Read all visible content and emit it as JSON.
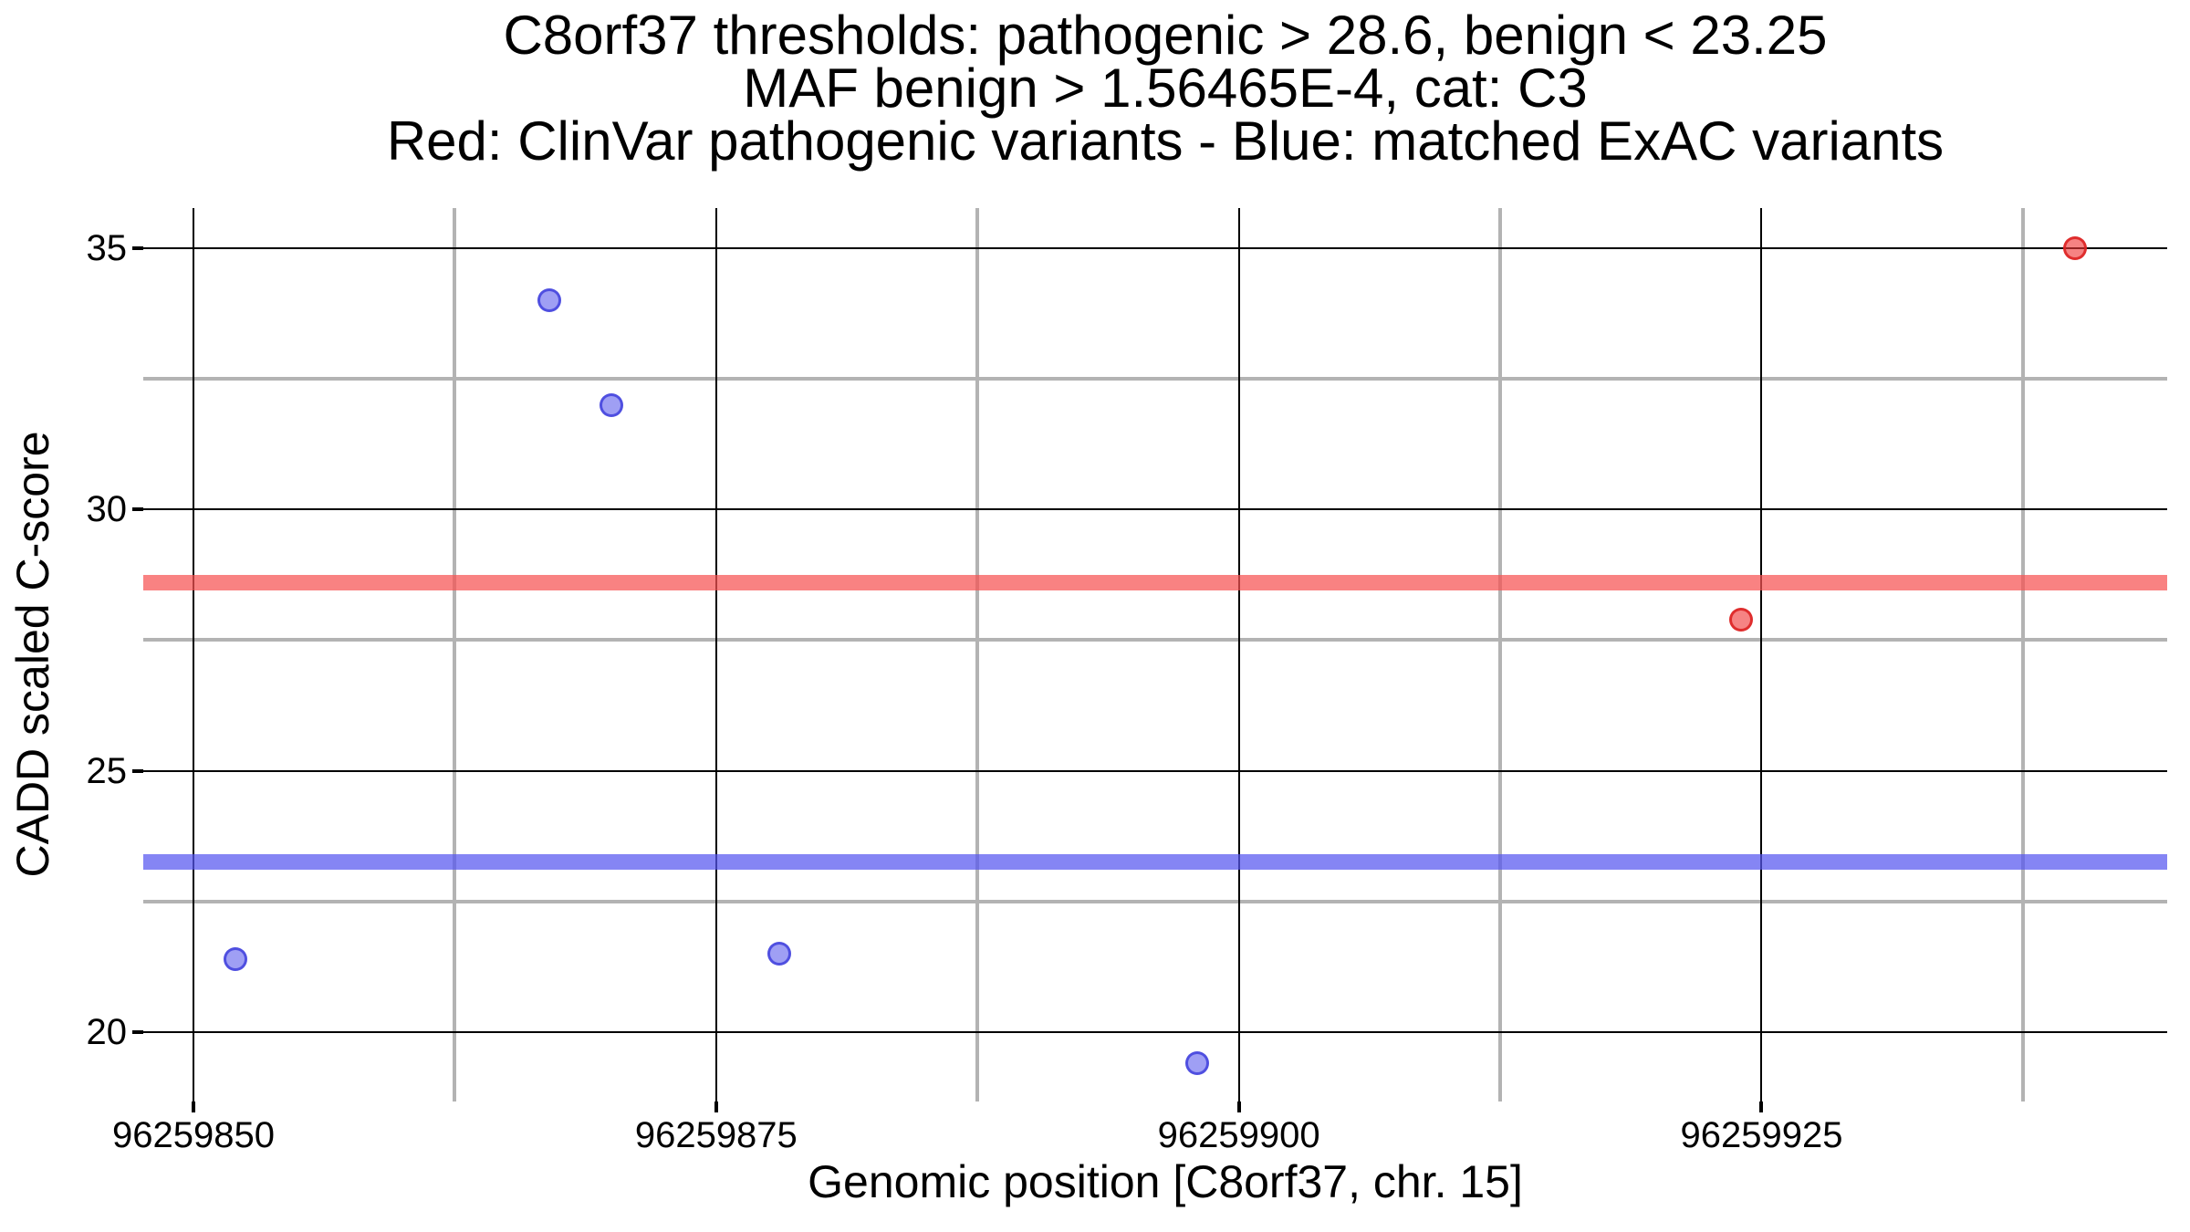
{
  "chart_data": {
    "type": "scatter",
    "title_lines": [
      "C8orf37 thresholds: pathogenic > 28.6, benign < 23.25",
      "MAF benign > 1.56465E-4, cat: C3",
      "Red: ClinVar pathogenic variants - Blue: matched ExAC variants"
    ],
    "xlabel": "Genomic position [C8orf37, chr. 15]",
    "ylabel": "CADD scaled C-score",
    "xlim": [
      96259847.6,
      96259944.4
    ],
    "ylim": [
      18.67,
      35.77
    ],
    "x_ticks": [
      {
        "value": 96259850,
        "label": "96259850"
      },
      {
        "value": 96259875,
        "label": "96259875"
      },
      {
        "value": 96259900,
        "label": "96259900"
      },
      {
        "value": 96259925,
        "label": "96259925"
      }
    ],
    "y_ticks": [
      {
        "value": 35,
        "label": "35"
      },
      {
        "value": 30,
        "label": "30"
      },
      {
        "value": 25,
        "label": "25"
      },
      {
        "value": 20,
        "label": "20"
      }
    ],
    "x_minor_ticks": [
      96259862.5,
      96259887.5,
      96259912.5,
      96259937.5
    ],
    "y_minor_ticks": [
      32.5,
      27.5,
      22.5
    ],
    "grid": {
      "major_on": true,
      "minor_on": true
    },
    "legend_position": "none",
    "thresholds": [
      {
        "name": "pathogenic",
        "label": "pathogenic > 28.6",
        "value": 28.6,
        "color": "rgba(246,82,82,0.72)"
      },
      {
        "name": "benign",
        "label": "benign < 23.25",
        "value": 23.25,
        "color": "rgba(86,86,240,0.72)"
      }
    ],
    "series": [
      {
        "key": "clinvar",
        "name": "ClinVar pathogenic variants",
        "color_meaning": "red",
        "fill": "rgba(240,55,55,0.62)",
        "stroke": "rgba(220,30,30,0.85)",
        "points": [
          {
            "x": 96259924,
            "y": 27.9
          },
          {
            "x": 96259940,
            "y": 35
          }
        ]
      },
      {
        "key": "exac",
        "name": "matched ExAC variants",
        "color_meaning": "blue",
        "fill": "rgba(100,100,238,0.62)",
        "stroke": "rgba(60,60,220,0.8)",
        "points": [
          {
            "x": 96259852,
            "y": 21.4
          },
          {
            "x": 96259867,
            "y": 34
          },
          {
            "x": 96259870,
            "y": 32
          },
          {
            "x": 96259878,
            "y": 21.5
          },
          {
            "x": 96259898,
            "y": 19.4
          }
        ]
      }
    ],
    "colors": {
      "background": "#ffffff",
      "major_grid": "#000000",
      "minor_grid": "#b3b3b3",
      "tick_mark": "#000000",
      "text": "#000000"
    }
  }
}
